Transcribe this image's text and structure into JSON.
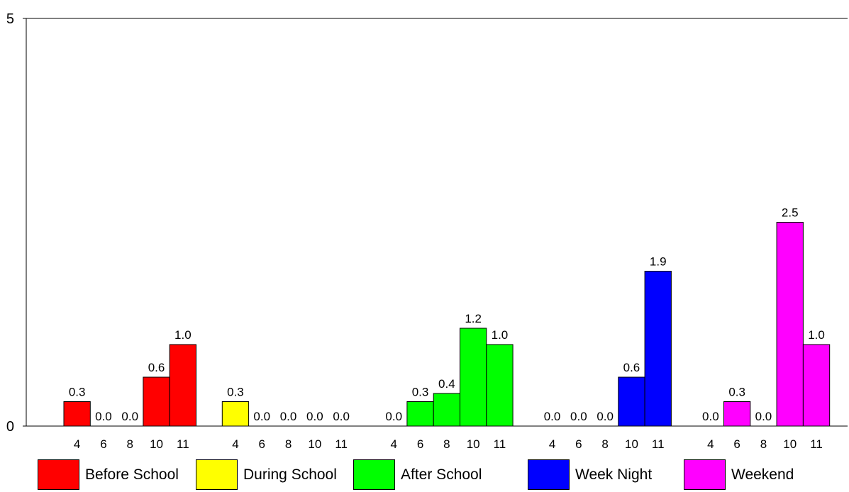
{
  "chart_data": {
    "type": "bar",
    "title": "",
    "xlabel": "",
    "ylabel": "",
    "ylim": [
      0,
      5
    ],
    "y_ticks": [
      "0",
      "5"
    ],
    "grid": false,
    "legend_position": "bottom",
    "groups": [
      {
        "name": "Before School",
        "color": "#ff0000",
        "categories": [
          "4",
          "6",
          "8",
          "10",
          "11"
        ],
        "values": [
          0.3,
          0.0,
          0.0,
          0.6,
          1.0
        ],
        "labels": [
          "0.3",
          "0.0",
          "0.0",
          "0.6",
          "1.0"
        ]
      },
      {
        "name": "During School",
        "color": "#ffff00",
        "categories": [
          "4",
          "6",
          "8",
          "10",
          "11"
        ],
        "values": [
          0.3,
          0.0,
          0.0,
          0.0,
          0.0
        ],
        "labels": [
          "0.3",
          "0.0",
          "0.0",
          "0.0",
          "0.0"
        ]
      },
      {
        "name": "After School",
        "color": "#00ff00",
        "categories": [
          "4",
          "6",
          "8",
          "10",
          "11"
        ],
        "values": [
          0.0,
          0.3,
          0.4,
          1.2,
          1.0
        ],
        "labels": [
          "0.0",
          "0.3",
          "0.4",
          "1.2",
          "1.0"
        ]
      },
      {
        "name": "Week Night",
        "color": "#0000ff",
        "categories": [
          "4",
          "6",
          "8",
          "10",
          "11"
        ],
        "values": [
          0.0,
          0.0,
          0.0,
          0.6,
          1.9
        ],
        "labels": [
          "0.0",
          "0.0",
          "0.0",
          "0.6",
          "1.9"
        ]
      },
      {
        "name": "Weekend",
        "color": "#ff00ff",
        "categories": [
          "4",
          "6",
          "8",
          "10",
          "11"
        ],
        "values": [
          0.0,
          0.3,
          0.0,
          2.5,
          1.0
        ],
        "labels": [
          "0.0",
          "0.3",
          "0.0",
          "2.5",
          "1.0"
        ]
      }
    ]
  },
  "legend": {
    "items": [
      {
        "label": "Before School",
        "color": "#ff0000"
      },
      {
        "label": "During School",
        "color": "#ffff00"
      },
      {
        "label": "After School",
        "color": "#00ff00"
      },
      {
        "label": "Week Night",
        "color": "#0000ff"
      },
      {
        "label": "Weekend",
        "color": "#ff00ff"
      }
    ]
  }
}
